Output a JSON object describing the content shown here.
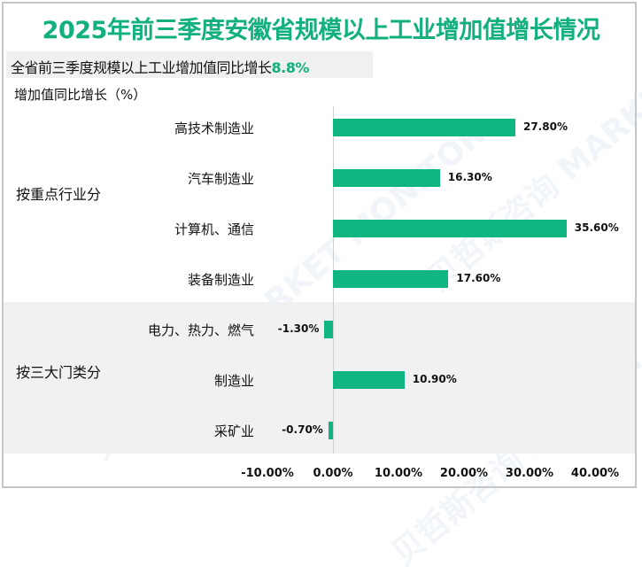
{
  "title": "2025年前三季度安徽省规模以上工业增加值增长情况",
  "subtitle": {
    "text": "全省前三季度规模以上工业增加值同比增长",
    "highlight": "8.8%"
  },
  "y_axis_title": "增加值同比增长（%）",
  "groups": [
    {
      "label": "按重点行业分"
    },
    {
      "label": "按三大门类分"
    }
  ],
  "categories": [
    {
      "label": "高技术制造业",
      "value_label": "27.80%"
    },
    {
      "label": "汽车制造业",
      "value_label": "16.30%"
    },
    {
      "label": "计算机、通信",
      "value_label": "35.60%"
    },
    {
      "label": "装备制造业",
      "value_label": "17.60%"
    },
    {
      "label": "电力、热力、燃气",
      "value_label": "-1.30%"
    },
    {
      "label": "制造业",
      "value_label": "10.90%"
    },
    {
      "label": "采矿业",
      "value_label": "-0.70%"
    }
  ],
  "x_ticks": [
    "-10.00%",
    "0.00%",
    "10.00%",
    "20.00%",
    "30.00%",
    "40.00%"
  ],
  "colors": {
    "bar": "#10b582",
    "title": "#12b07e",
    "band": "#f1f1f1"
  },
  "watermark": "贝哲斯咨询 MARKET MONITOR",
  "chart_data": {
    "type": "bar",
    "orientation": "horizontal",
    "title": "2025年前三季度安徽省规模以上工业增加值增长情况",
    "subtitle": "全省前三季度规模以上工业增加值同比增长8.8%",
    "ylabel": "增加值同比增长（%）",
    "xlabel": "",
    "groups": [
      {
        "name": "按重点行业分",
        "categories": [
          "高技术制造业",
          "汽车制造业",
          "计算机、通信",
          "装备制造业"
        ],
        "values": [
          27.8,
          16.3,
          35.6,
          17.6
        ]
      },
      {
        "name": "按三大门类分",
        "categories": [
          "电力、热力、燃气",
          "制造业",
          "采矿业"
        ],
        "values": [
          -1.3,
          10.9,
          -0.7
        ]
      }
    ],
    "categories": [
      "高技术制造业",
      "汽车制造业",
      "计算机、通信",
      "装备制造业",
      "电力、热力、燃气",
      "制造业",
      "采矿业"
    ],
    "values": [
      27.8,
      16.3,
      35.6,
      17.6,
      -1.3,
      10.9,
      -0.7
    ],
    "unit": "%",
    "xlim": [
      -10,
      40
    ],
    "x_tick_labels": [
      "-10.00%",
      "0.00%",
      "10.00%",
      "20.00%",
      "30.00%",
      "40.00%"
    ],
    "data_labels": true,
    "grid": false,
    "legend": null
  }
}
